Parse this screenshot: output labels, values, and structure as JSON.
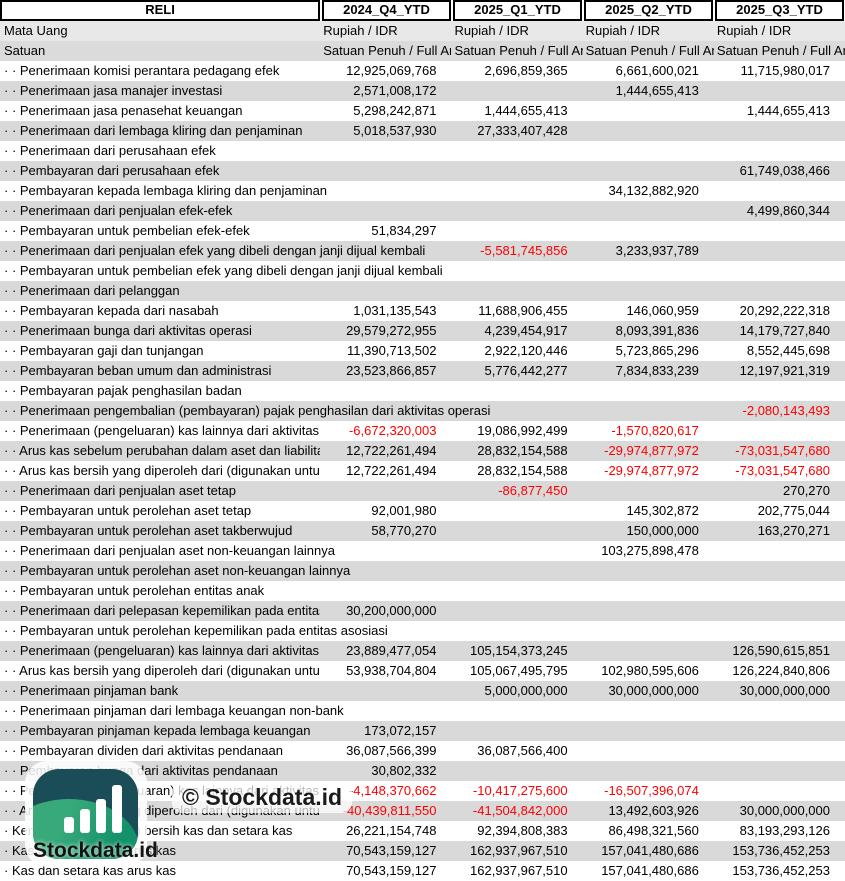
{
  "table": {
    "ticker": "RELI",
    "columns": [
      "2024_Q4_YTD",
      "2025_Q1_YTD",
      "2025_Q2_YTD",
      "2025_Q3_YTD"
    ],
    "currency_label": "Mata Uang",
    "currency_values": [
      "Rupiah / IDR",
      "Rupiah / IDR",
      "Rupiah / IDR",
      "Rupiah / IDR"
    ],
    "unit_label": "Satuan",
    "unit_values": [
      "Satuan Penuh / Full Amount",
      "Satuan Penuh / Full Amount",
      "Satuan Penuh / Full Amount",
      "Satuan Penuh / Full Amount"
    ],
    "rows": [
      {
        "label": "· · Penerimaan komisi perantara pedagang efek",
        "values": [
          "12,925,069,768",
          "2,696,859,365",
          "6,661,600,021",
          "11,715,980,017"
        ]
      },
      {
        "label": "· · Penerimaan jasa manajer investasi",
        "values": [
          "2,571,008,172",
          "",
          "1,444,655,413",
          ""
        ]
      },
      {
        "label": "· · Penerimaan jasa penasehat keuangan",
        "values": [
          "5,298,242,871",
          "1,444,655,413",
          "",
          "1,444,655,413"
        ]
      },
      {
        "label": "· · Penerimaan dari lembaga kliring dan penjaminan",
        "values": [
          "5,018,537,930",
          "27,333,407,428",
          "",
          ""
        ]
      },
      {
        "label": "· · Penerimaan dari perusahaan efek",
        "values": [
          "",
          "",
          "",
          ""
        ]
      },
      {
        "label": "· · Pembayaran dari perusahaan efek",
        "values": [
          "",
          "",
          "",
          "61,749,038,466"
        ]
      },
      {
        "label": "· · Pembayaran kepada lembaga kliring dan penjaminan",
        "values": [
          "",
          "",
          "34,132,882,920",
          ""
        ]
      },
      {
        "label": "· · Penerimaan dari penjualan efek-efek",
        "values": [
          "",
          "",
          "",
          "4,499,860,344"
        ]
      },
      {
        "label": "· · Pembayaran untuk pembelian efek-efek",
        "values": [
          "51,834,297",
          "",
          "",
          ""
        ]
      },
      {
        "label": "· · Penerimaan dari penjualan efek yang dibeli dengan janji dijual kembali",
        "values": [
          "",
          "-5,581,745,856",
          "3,233,937,789",
          ""
        ]
      },
      {
        "label": "· · Pembayaran untuk pembelian efek yang dibeli dengan janji dijual kembali",
        "values": [
          "",
          "",
          "",
          ""
        ]
      },
      {
        "label": "· · Penerimaan dari pelanggan",
        "values": [
          "",
          "",
          "",
          ""
        ]
      },
      {
        "label": "· · Pembayaran kepada dari nasabah",
        "values": [
          "1,031,135,543",
          "11,688,906,455",
          "146,060,959",
          "20,292,222,318"
        ]
      },
      {
        "label": "· · Penerimaan bunga dari aktivitas operasi",
        "values": [
          "29,579,272,955",
          "4,239,454,917",
          "8,093,391,836",
          "14,179,727,840"
        ]
      },
      {
        "label": "· · Pembayaran gaji dan tunjangan",
        "values": [
          "11,390,713,502",
          "2,922,120,446",
          "5,723,865,296",
          "8,552,445,698"
        ]
      },
      {
        "label": "· · Pembayaran beban umum dan administrasi",
        "values": [
          "23,523,866,857",
          "5,776,442,277",
          "7,834,833,239",
          "12,197,921,319"
        ]
      },
      {
        "label": "· · Pembayaran pajak penghasilan badan",
        "values": [
          "",
          "",
          "",
          ""
        ]
      },
      {
        "label": "· · Penerimaan pengembalian (pembayaran) pajak penghasilan dari aktivitas operasi",
        "values": [
          "",
          "",
          "",
          "-2,080,143,493"
        ]
      },
      {
        "label": "· · Penerimaan (pengeluaran) kas lainnya dari aktivitas operasi",
        "values": [
          "-6,672,320,003",
          "19,086,992,499",
          "-1,570,820,617",
          ""
        ]
      },
      {
        "label": "· · Arus kas sebelum perubahan dalam aset dan liabilitas operasi",
        "values": [
          "12,722,261,494",
          "28,832,154,588",
          "-29,974,877,972",
          "-73,031,547,680"
        ]
      },
      {
        "label": "· · Arus kas bersih yang diperoleh dari (digunakan untuk) aktivitas operasi",
        "values": [
          "12,722,261,494",
          "28,832,154,588",
          "-29,974,877,972",
          "-73,031,547,680"
        ]
      },
      {
        "label": "· · Penerimaan dari penjualan aset tetap",
        "values": [
          "",
          "-86,877,450",
          "",
          "270,270"
        ]
      },
      {
        "label": "· · Pembayaran untuk perolehan aset tetap",
        "values": [
          "92,001,980",
          "",
          "145,302,872",
          "202,775,044"
        ]
      },
      {
        "label": "· · Pembayaran untuk perolehan aset takberwujud",
        "values": [
          "58,770,270",
          "",
          "150,000,000",
          "163,270,271"
        ]
      },
      {
        "label": "· · Penerimaan dari penjualan aset non-keuangan lainnya",
        "values": [
          "",
          "",
          "103,275,898,478",
          ""
        ]
      },
      {
        "label": "· · Pembayaran untuk perolehan aset non-keuangan lainnya",
        "values": [
          "",
          "",
          "",
          ""
        ]
      },
      {
        "label": "· · Pembayaran untuk perolehan entitas anak",
        "values": [
          "",
          "",
          "",
          ""
        ]
      },
      {
        "label": "· · Penerimaan dari pelepasan kepemilikan pada entitas",
        "values": [
          "30,200,000,000",
          "",
          "",
          ""
        ]
      },
      {
        "label": "· · Pembayaran untuk perolehan kepemilikan pada entitas asosiasi",
        "values": [
          "",
          "",
          "",
          ""
        ]
      },
      {
        "label": "· · Penerimaan (pengeluaran) kas lainnya dari aktivitas investasi",
        "values": [
          "23,889,477,054",
          "105,154,373,245",
          "",
          "126,590,615,851"
        ]
      },
      {
        "label": "· · Arus kas bersih yang diperoleh dari (digunakan untuk) aktivitas investasi",
        "values": [
          "53,938,704,804",
          "105,067,495,795",
          "102,980,595,606",
          "126,224,840,806"
        ]
      },
      {
        "label": "· · Penerimaan pinjaman bank",
        "values": [
          "",
          "5,000,000,000",
          "30,000,000,000",
          "30,000,000,000"
        ]
      },
      {
        "label": "· · Penerimaan pinjaman dari lembaga keuangan non-bank",
        "values": [
          "",
          "",
          "",
          ""
        ]
      },
      {
        "label": "· · Pembayaran pinjaman kepada lembaga keuangan",
        "values": [
          "173,072,157",
          "",
          "",
          ""
        ]
      },
      {
        "label": "· · Pembayaran dividen dari aktivitas pendanaan",
        "values": [
          "36,087,566,399",
          "36,087,566,400",
          "",
          ""
        ]
      },
      {
        "label": "· · Pembayaran bunga dari aktivitas pendanaan",
        "values": [
          "30,802,332",
          "",
          "",
          ""
        ]
      },
      {
        "label": "· · Penerimaan (pengeluaran) kas lainnya dari aktivitas pendanaan",
        "values": [
          "-4,148,370,662",
          "-10,417,275,600",
          "-16,507,396,074",
          ""
        ]
      },
      {
        "label": "· · Arus kas bersih yang diperoleh dari (digunakan untuk) aktivitas pendanaan",
        "values": [
          "-40,439,811,550",
          "-41,504,842,000",
          "13,492,603,926",
          "30,000,000,000"
        ]
      },
      {
        "label": "· Kenaikan (penurunan) bersih kas dan setara kas",
        "values": [
          "26,221,154,748",
          "92,394,808,383",
          "86,498,321,560",
          "83,193,293,126"
        ]
      },
      {
        "label": "· Kas dan setara kas arus kas",
        "values": [
          "70,543,159,127",
          "162,937,967,510",
          "157,041,480,686",
          "153,736,452,253"
        ]
      },
      {
        "label": "· Kas dan setara kas arus kas",
        "values": [
          "70,543,159,127",
          "162,937,967,510",
          "157,041,480,686",
          "153,736,452,253"
        ]
      }
    ]
  },
  "watermark": {
    "copyright_text": "© Stockdata.id",
    "brand_text": "Stockdata.id"
  },
  "colors": {
    "negative_value": "#ff0000",
    "row_alt_gray": "#d9d9d9",
    "currency_row_bg": "#e9e8e8",
    "unit_row_bg": "#dbdbdb",
    "logo_teal": "#1a4d58",
    "logo_green": "#2fa173"
  }
}
